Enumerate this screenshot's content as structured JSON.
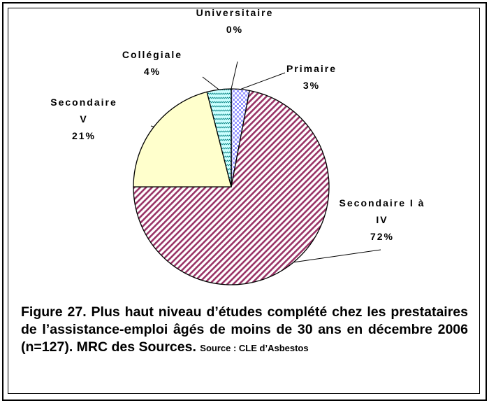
{
  "chart_data": {
    "type": "pie",
    "title": "Figure 27. Plus haut niveau d’études complété chez les prestataires de l’assistance-emploi âgés de moins de 30 ans en décembre 2006 (n=127). MRC des Sources.",
    "source": "Source : CLE d’Asbestos",
    "categories": [
      "Primaire",
      "Secondaire I à IV",
      "Secondaire V",
      "Collégiale",
      "Universitaire"
    ],
    "values": [
      3,
      72,
      21,
      4,
      0
    ],
    "value_labels": [
      "3%",
      "72%",
      "21%",
      "4%",
      "0%"
    ],
    "colors": [
      "#9999ff",
      "#993366",
      "#ffffcc",
      "#ccffff",
      "#ffffff"
    ]
  }
}
